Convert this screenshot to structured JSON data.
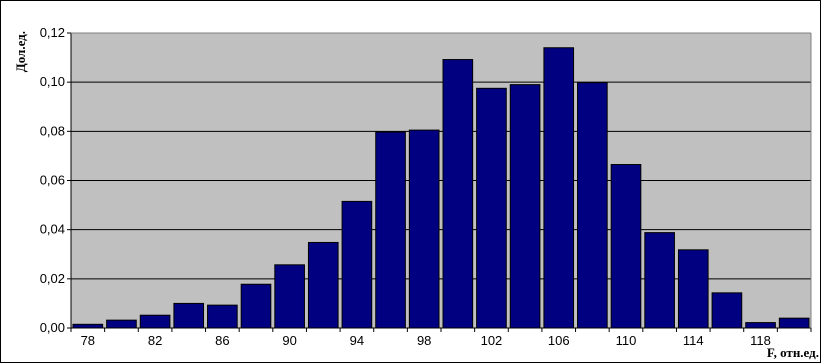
{
  "chart_data": {
    "type": "bar",
    "xlabel": "F, отн.ед.",
    "ylabel": "Дол.ед.",
    "categories": [
      "78",
      "80",
      "82",
      "84",
      "86",
      "88",
      "90",
      "92",
      "94",
      "96",
      "98",
      "100",
      "102",
      "104",
      "106",
      "108",
      "110",
      "112",
      "114",
      "116",
      "118",
      "120"
    ],
    "x_tick_labels": [
      "78",
      "82",
      "86",
      "90",
      "94",
      "98",
      "102",
      "106",
      "110",
      "114",
      "118"
    ],
    "y_tick_labels": [
      "0,00",
      "0,02",
      "0,04",
      "0,06",
      "0,08",
      "0,10",
      "0,12"
    ],
    "values": [
      0.0015,
      0.0032,
      0.0052,
      0.01,
      0.0093,
      0.0178,
      0.0257,
      0.0348,
      0.0515,
      0.0797,
      0.0805,
      0.1092,
      0.0975,
      0.099,
      0.114,
      0.0998,
      0.0665,
      0.0388,
      0.0318,
      0.0143,
      0.0022,
      0.004
    ],
    "ylim": [
      0,
      0.12
    ],
    "grid": true,
    "legend": "none",
    "colors": {
      "bar_fill": "#000080",
      "bar_stroke": "#000000",
      "plot_background": "#c0c0c0",
      "grid": "#000000"
    }
  }
}
